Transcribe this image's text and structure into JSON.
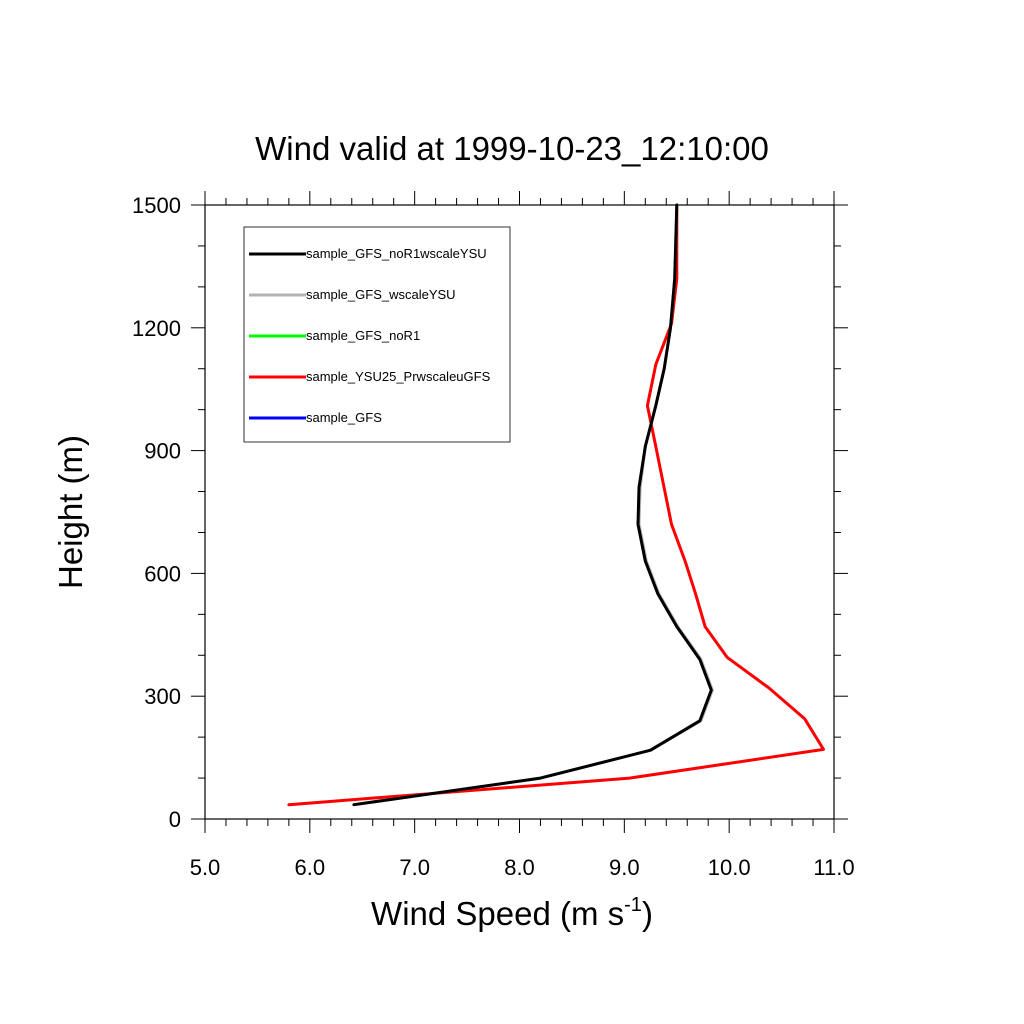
{
  "chart_data": {
    "type": "line",
    "title": "Wind valid at 1999-10-23_12:10:00",
    "xlabel_main": "Wind Speed (m s",
    "xlabel_sup": "-1",
    "xlabel_end": ")",
    "ylabel": "Height (m)",
    "xlim": [
      5.0,
      11.0
    ],
    "ylim": [
      0,
      1500
    ],
    "x_ticks": [
      "5.0",
      "6.0",
      "7.0",
      "8.0",
      "9.0",
      "10.0",
      "11.0"
    ],
    "x_tick_values": [
      5,
      6,
      7,
      8,
      9,
      10,
      11
    ],
    "y_ticks": [
      "0",
      "300",
      "600",
      "900",
      "1200",
      "1500"
    ],
    "y_tick_values": [
      0,
      300,
      600,
      900,
      1200,
      1500
    ],
    "legend_position": "top-left",
    "series": [
      {
        "name": "sample_GFS_noR1wscaleYSU",
        "color": "#000000",
        "points": [
          [
            6.42,
            35
          ],
          [
            8.2,
            100
          ],
          [
            9.25,
            168
          ],
          [
            9.72,
            240
          ],
          [
            9.83,
            315
          ],
          [
            9.72,
            390
          ],
          [
            9.5,
            470
          ],
          [
            9.32,
            550
          ],
          [
            9.2,
            630
          ],
          [
            9.13,
            720
          ],
          [
            9.14,
            810
          ],
          [
            9.2,
            910
          ],
          [
            9.3,
            1010
          ],
          [
            9.38,
            1100
          ],
          [
            9.44,
            1200
          ],
          [
            9.48,
            1320
          ],
          [
            9.5,
            1500
          ]
        ]
      },
      {
        "name": "sample_GFS_wscaleYSU",
        "color": "#b3b3b3",
        "points": [
          [
            6.42,
            35
          ],
          [
            8.2,
            100
          ],
          [
            9.25,
            168
          ],
          [
            9.73,
            240
          ],
          [
            9.84,
            315
          ],
          [
            9.73,
            390
          ],
          [
            9.51,
            470
          ],
          [
            9.33,
            550
          ],
          [
            9.21,
            630
          ],
          [
            9.14,
            720
          ],
          [
            9.15,
            810
          ],
          [
            9.2,
            910
          ],
          [
            9.3,
            1010
          ],
          [
            9.38,
            1100
          ],
          [
            9.44,
            1200
          ],
          [
            9.48,
            1320
          ],
          [
            9.5,
            1500
          ]
        ]
      },
      {
        "name": "sample_GFS_noR1",
        "color": "#00ff00",
        "points": []
      },
      {
        "name": "sample_YSU25_PrwscaleuGFS",
        "color": "#ff0000",
        "points": [
          [
            5.8,
            35
          ],
          [
            9.05,
            100
          ],
          [
            10.9,
            170
          ],
          [
            10.72,
            245
          ],
          [
            10.38,
            320
          ],
          [
            9.98,
            395
          ],
          [
            9.77,
            470
          ],
          [
            9.68,
            550
          ],
          [
            9.58,
            630
          ],
          [
            9.45,
            720
          ],
          [
            9.3,
            910
          ],
          [
            9.22,
            1010
          ],
          [
            9.3,
            1110
          ],
          [
            9.45,
            1210
          ],
          [
            9.5,
            1320
          ],
          [
            9.5,
            1500
          ]
        ]
      },
      {
        "name": "sample_GFS",
        "color": "#0000ff",
        "points": []
      }
    ]
  }
}
